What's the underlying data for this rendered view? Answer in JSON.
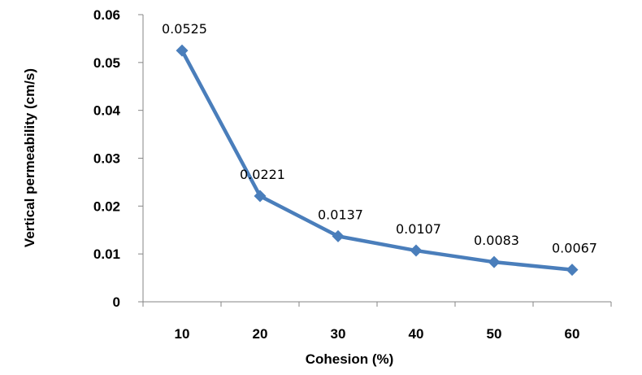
{
  "chart_data": {
    "type": "line",
    "title": "",
    "xlabel": "Cohesion (%)",
    "ylabel": "Vertical permeability (cm/s)",
    "categories": [
      "10",
      "20",
      "30",
      "40",
      "50",
      "60"
    ],
    "series": [
      {
        "values": [
          0.0525,
          0.0221,
          0.0137,
          0.0107,
          0.0083,
          0.0067
        ]
      }
    ],
    "data_labels": [
      "0.0525",
      "0.0221",
      "0.0137",
      "0.0107",
      "0.0083",
      "0.0067"
    ],
    "ylim": [
      0,
      0.06
    ],
    "yticks": [
      "0",
      "0.01",
      "0.02",
      "0.03",
      "0.04",
      "0.05",
      "0.06"
    ],
    "grid": false,
    "legend": "none",
    "marker": "diamond",
    "color": "#4a7ebb"
  }
}
